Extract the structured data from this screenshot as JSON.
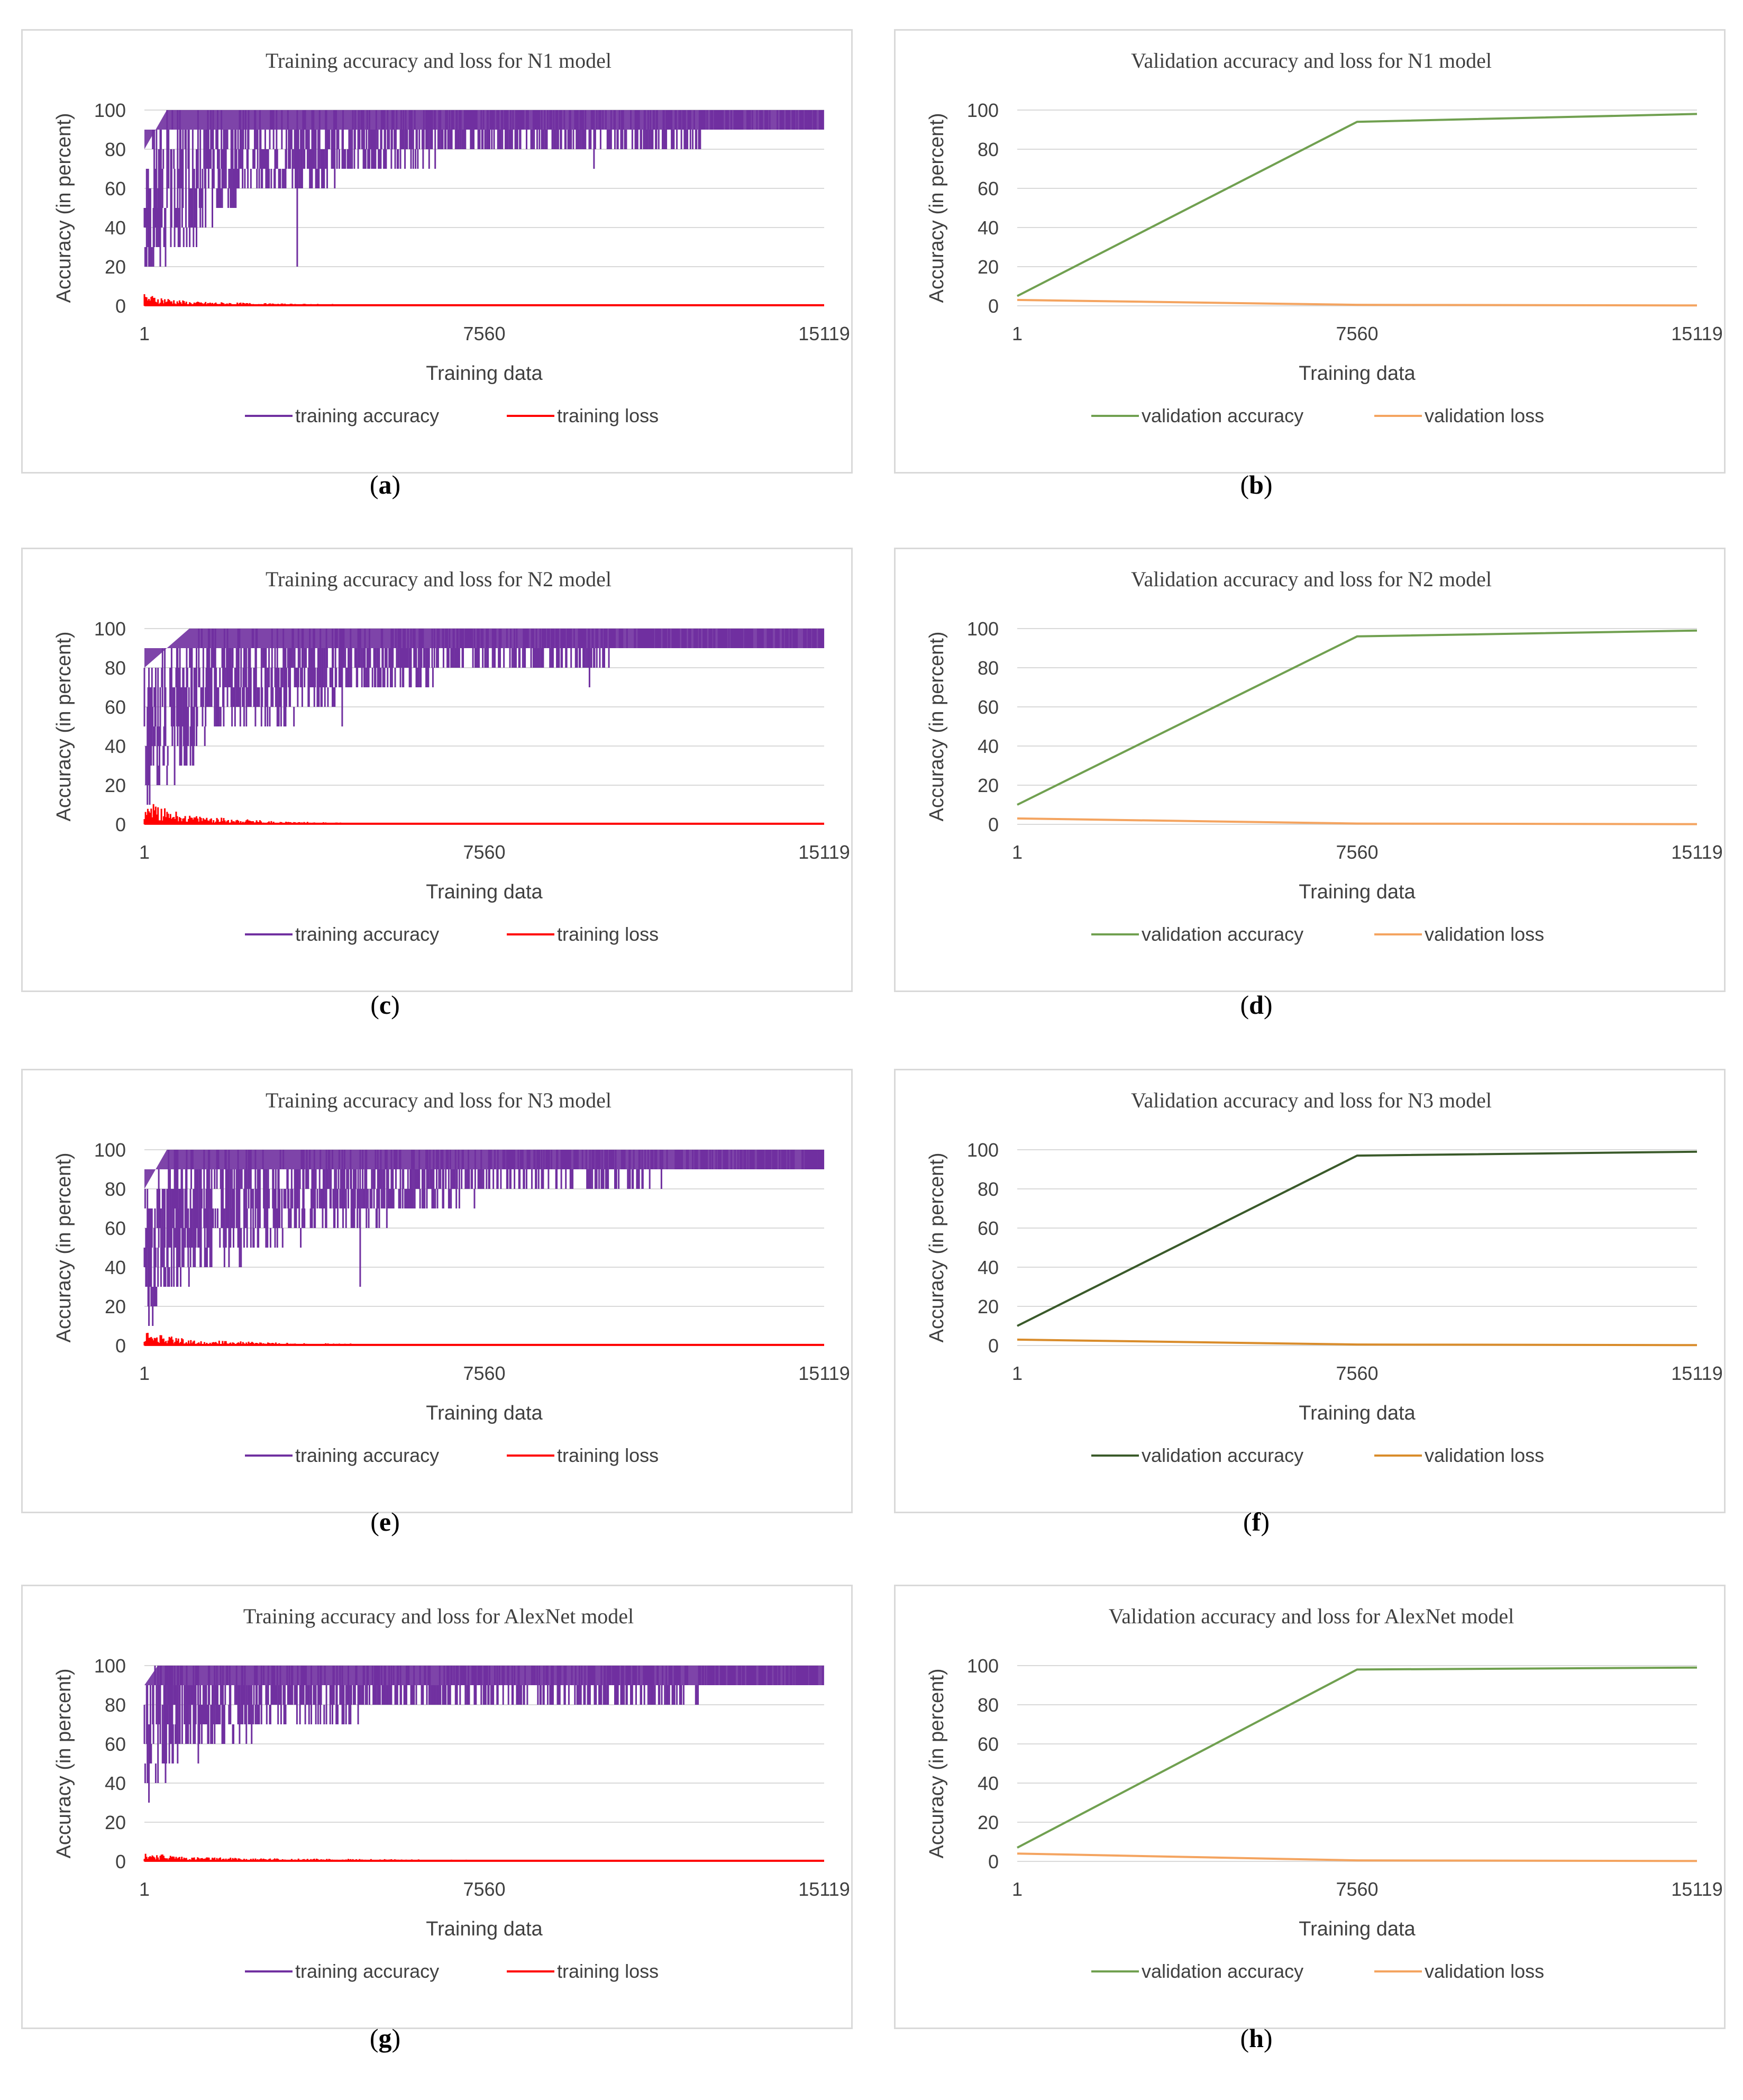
{
  "captions": [
    "(a)",
    "(b)",
    "(c)",
    "(d)",
    "(e)",
    "(f)",
    "(g)",
    "(h)"
  ],
  "chart_data": [
    {
      "type": "line",
      "title": "Training accuracy and loss for N1 model",
      "xlabel": "Training data",
      "ylabel": "Accuracy (in percent)",
      "x_ticks": [
        "1",
        "7560",
        "15119"
      ],
      "y_ticks": [
        "0",
        "20",
        "40",
        "60",
        "80",
        "100"
      ],
      "xlim": [
        1,
        15119
      ],
      "ylim": [
        0,
        100
      ],
      "grid": true,
      "legend": "bottom",
      "series": [
        {
          "name": "training accuracy",
          "color": "#7030a0",
          "x": [
            1,
            500,
            1000,
            1500,
            2000,
            3000,
            4000,
            5000,
            6000,
            7000,
            8000,
            9000,
            10000,
            11000,
            12000,
            13000,
            14000,
            15119
          ],
          "y_min": [
            10,
            20,
            30,
            40,
            50,
            60,
            60,
            70,
            70,
            80,
            80,
            80,
            80,
            80,
            80,
            90,
            90,
            90
          ],
          "y_max": [
            80,
            100,
            100,
            100,
            100,
            100,
            100,
            100,
            100,
            100,
            100,
            100,
            100,
            100,
            100,
            100,
            100,
            100
          ],
          "spikes": [
            [
              3400,
              20
            ],
            [
              10000,
              70
            ]
          ]
        },
        {
          "name": "training loss",
          "color": "#ff0000",
          "x": [
            1,
            1000,
            3000,
            5000,
            8000,
            11000,
            15119
          ],
          "y": [
            4,
            1.5,
            0.8,
            0.5,
            0.3,
            0.2,
            0.1
          ]
        }
      ]
    },
    {
      "type": "line",
      "title": "Validation accuracy and loss for N1 model",
      "xlabel": "Training data",
      "ylabel": "Accuracy (in percent)",
      "x_ticks": [
        "1",
        "7560",
        "15119"
      ],
      "y_ticks": [
        "0",
        "20",
        "40",
        "60",
        "80",
        "100"
      ],
      "xlim": [
        1,
        15119
      ],
      "ylim": [
        0,
        100
      ],
      "grid": true,
      "legend": "bottom",
      "series": [
        {
          "name": "validation accuracy",
          "color": "#70a050",
          "x": [
            1,
            7560,
            15119
          ],
          "y": [
            5,
            94,
            98
          ]
        },
        {
          "name": "validation loss",
          "color": "#f4a460",
          "x": [
            1,
            7560,
            15119
          ],
          "y": [
            3,
            0.5,
            0.2
          ]
        }
      ]
    },
    {
      "type": "line",
      "title": "Training accuracy and loss for N2 model",
      "xlabel": "Training data",
      "ylabel": "Accuracy (in percent)",
      "x_ticks": [
        "1",
        "7560",
        "15119"
      ],
      "y_ticks": [
        "0",
        "20",
        "40",
        "60",
        "80",
        "100"
      ],
      "xlim": [
        1,
        15119
      ],
      "ylim": [
        0,
        100
      ],
      "grid": true,
      "legend": "bottom",
      "series": [
        {
          "name": "training accuracy",
          "color": "#7030a0",
          "x": [
            1,
            500,
            1000,
            1500,
            2000,
            3000,
            4000,
            5000,
            6000,
            7000,
            8000,
            9000,
            10000,
            11000,
            12000,
            13000,
            14000,
            15119
          ],
          "y_min": [
            10,
            20,
            30,
            40,
            50,
            50,
            60,
            70,
            70,
            80,
            80,
            80,
            80,
            90,
            90,
            90,
            90,
            90
          ],
          "y_max": [
            80,
            90,
            100,
            100,
            100,
            100,
            100,
            100,
            100,
            100,
            100,
            100,
            100,
            100,
            100,
            100,
            100,
            100
          ],
          "spikes": [
            [
              4400,
              50
            ],
            [
              9900,
              70
            ]
          ]
        },
        {
          "name": "training loss",
          "color": "#ff0000",
          "x": [
            1,
            1000,
            3000,
            5000,
            8000,
            11000,
            15119
          ],
          "y": [
            8,
            3,
            1,
            0.5,
            0.3,
            0.2,
            0.1
          ]
        }
      ]
    },
    {
      "type": "line",
      "title": "Validation accuracy and loss for N2 model",
      "xlabel": "Training data",
      "ylabel": "Accuracy (in percent)",
      "x_ticks": [
        "1",
        "7560",
        "15119"
      ],
      "y_ticks": [
        "0",
        "20",
        "40",
        "60",
        "80",
        "100"
      ],
      "xlim": [
        1,
        15119
      ],
      "ylim": [
        0,
        100
      ],
      "grid": true,
      "legend": "bottom",
      "series": [
        {
          "name": "validation accuracy",
          "color": "#70a050",
          "x": [
            1,
            7560,
            15119
          ],
          "y": [
            10,
            96,
            99
          ]
        },
        {
          "name": "validation loss",
          "color": "#f4a460",
          "x": [
            1,
            7560,
            15119
          ],
          "y": [
            3,
            0.4,
            0.1
          ]
        }
      ]
    },
    {
      "type": "line",
      "title": "Training accuracy and loss for N3 model",
      "xlabel": "Training data",
      "ylabel": "Accuracy (in percent)",
      "x_ticks": [
        "1",
        "7560",
        "15119"
      ],
      "y_ticks": [
        "0",
        "20",
        "40",
        "60",
        "80",
        "100"
      ],
      "xlim": [
        1,
        15119
      ],
      "ylim": [
        0,
        100
      ],
      "grid": true,
      "legend": "bottom",
      "series": [
        {
          "name": "training accuracy",
          "color": "#7030a0",
          "x": [
            1,
            500,
            1000,
            1500,
            2000,
            3000,
            4000,
            5000,
            6000,
            7000,
            8000,
            9000,
            10000,
            11000,
            12000,
            13000,
            14000,
            15119
          ],
          "y_min": [
            10,
            20,
            30,
            40,
            40,
            50,
            60,
            60,
            70,
            70,
            80,
            80,
            80,
            80,
            90,
            90,
            90,
            90
          ],
          "y_max": [
            80,
            100,
            100,
            100,
            100,
            100,
            100,
            100,
            100,
            100,
            100,
            100,
            100,
            100,
            100,
            100,
            100,
            100
          ],
          "spikes": [
            [
              4800,
              30
            ],
            [
              11500,
              80
            ]
          ]
        },
        {
          "name": "training loss",
          "color": "#ff0000",
          "x": [
            1,
            1000,
            3000,
            5000,
            8000,
            11000,
            15119
          ],
          "y": [
            5,
            2,
            1,
            0.6,
            0.4,
            0.2,
            0.1
          ]
        }
      ]
    },
    {
      "type": "line",
      "title": "Validation accuracy and loss for N3 model",
      "xlabel": "Training data",
      "ylabel": "Accuracy (in percent)",
      "x_ticks": [
        "1",
        "7560",
        "15119"
      ],
      "y_ticks": [
        "0",
        "20",
        "40",
        "60",
        "80",
        "100"
      ],
      "xlim": [
        1,
        15119
      ],
      "ylim": [
        0,
        100
      ],
      "grid": true,
      "legend": "bottom",
      "series": [
        {
          "name": "validation accuracy",
          "color": "#3a5a2a",
          "x": [
            1,
            7560,
            15119
          ],
          "y": [
            10,
            97,
            99
          ]
        },
        {
          "name": "validation loss",
          "color": "#d98c2b",
          "x": [
            1,
            7560,
            15119
          ],
          "y": [
            3,
            0.5,
            0.2
          ]
        }
      ]
    },
    {
      "type": "line",
      "title": "Training accuracy and loss for AlexNet model",
      "xlabel": "Training data",
      "ylabel": "Accuracy (in percent)",
      "x_ticks": [
        "1",
        "7560",
        "15119"
      ],
      "y_ticks": [
        "0",
        "20",
        "40",
        "60",
        "80",
        "100"
      ],
      "xlim": [
        1,
        15119
      ],
      "ylim": [
        0,
        100
      ],
      "grid": true,
      "legend": "bottom",
      "series": [
        {
          "name": "training accuracy",
          "color": "#7030a0",
          "x": [
            1,
            300,
            700,
            1000,
            1500,
            2000,
            3000,
            4000,
            5000,
            6000,
            7000,
            8000,
            9000,
            10000,
            11000,
            12000,
            13000,
            14000,
            15119
          ],
          "y_min": [
            20,
            40,
            50,
            60,
            60,
            60,
            70,
            70,
            70,
            80,
            80,
            80,
            80,
            80,
            80,
            80,
            90,
            90,
            90
          ],
          "y_max": [
            90,
            100,
            100,
            100,
            100,
            100,
            100,
            100,
            100,
            100,
            100,
            100,
            100,
            100,
            100,
            100,
            100,
            100,
            100
          ],
          "spikes": [
            [
              1200,
              50
            ],
            [
              9800,
              80
            ]
          ]
        },
        {
          "name": "training loss",
          "color": "#ff0000",
          "x": [
            1,
            1000,
            3000,
            5000,
            8000,
            11000,
            15119
          ],
          "y": [
            3,
            1.5,
            1,
            0.8,
            0.5,
            0.4,
            0.3
          ]
        }
      ]
    },
    {
      "type": "line",
      "title": "Validation accuracy and loss for AlexNet model",
      "xlabel": "Training data",
      "ylabel": "Accuracy (in percent)",
      "x_ticks": [
        "1",
        "7560",
        "15119"
      ],
      "y_ticks": [
        "0",
        "20",
        "40",
        "60",
        "80",
        "100"
      ],
      "xlim": [
        1,
        15119
      ],
      "ylim": [
        0,
        100
      ],
      "grid": true,
      "legend": "bottom",
      "series": [
        {
          "name": "validation accuracy",
          "color": "#70a050",
          "x": [
            1,
            7560,
            15119
          ],
          "y": [
            7,
            98,
            99
          ]
        },
        {
          "name": "validation loss",
          "color": "#f4a460",
          "x": [
            1,
            7560,
            15119
          ],
          "y": [
            4,
            0.5,
            0.2
          ]
        }
      ]
    }
  ]
}
